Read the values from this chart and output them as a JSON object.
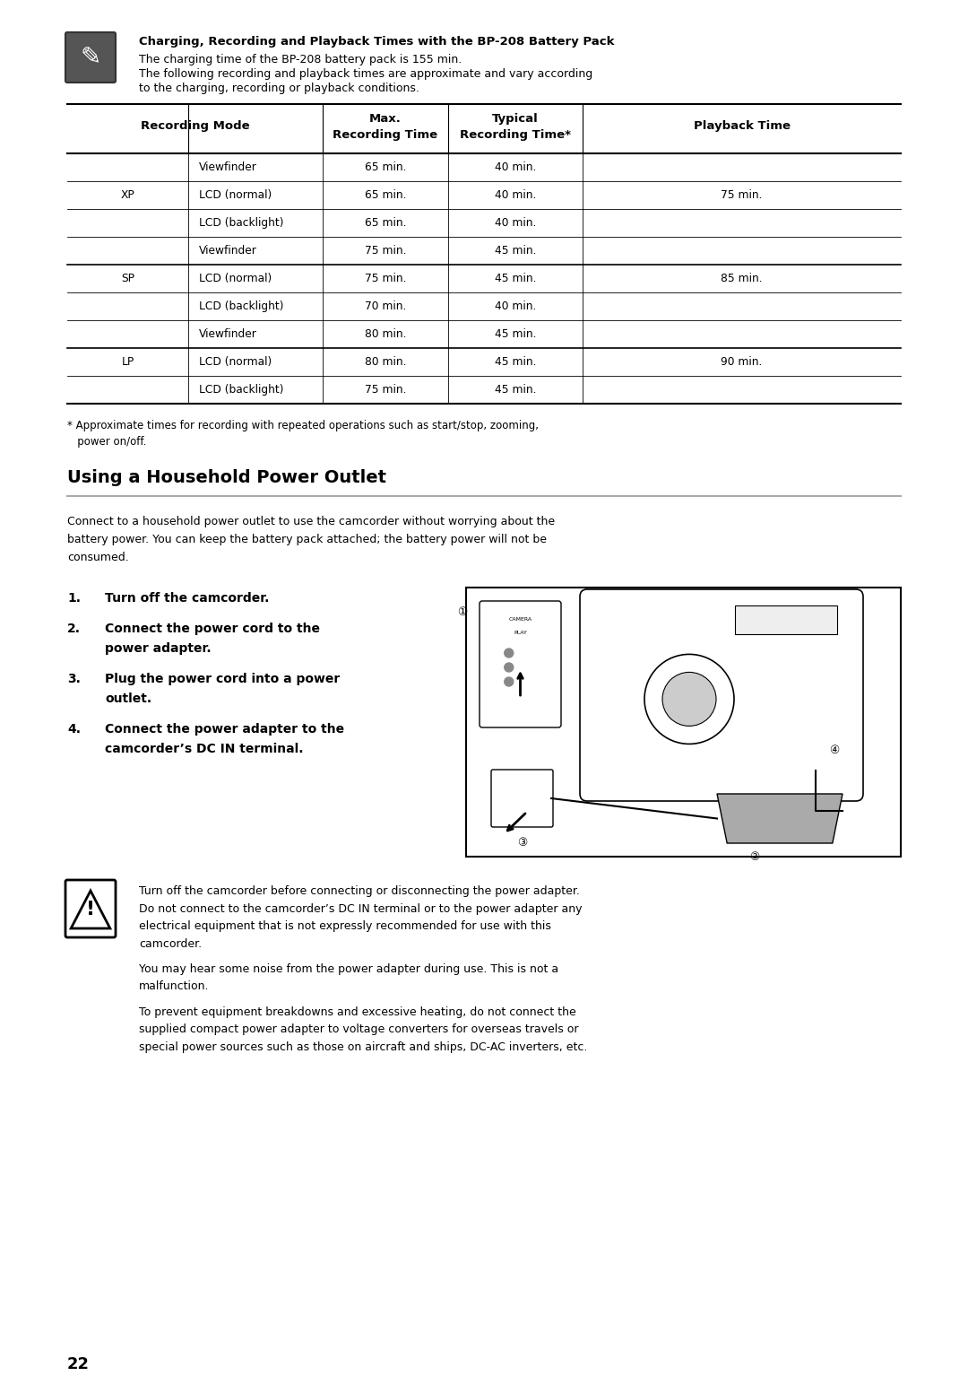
{
  "bg_color": "#ffffff",
  "page_number": "22",
  "section1": {
    "bold_title": "Charging, Recording and Playback Times with the BP-208 Battery Pack",
    "line1": "The charging time of the BP-208 battery pack is 155 min.",
    "line2": "The following recording and playback times are approximate and vary according",
    "line3": "to the charging, recording or playback conditions."
  },
  "table": {
    "rows": [
      {
        "mode_group": "XP",
        "sub": "Viewfinder",
        "max": "65 min.",
        "typ": "40 min.",
        "play": ""
      },
      {
        "mode_group": "XP",
        "sub": "LCD (normal)",
        "max": "65 min.",
        "typ": "40 min.",
        "play": "75 min."
      },
      {
        "mode_group": "XP",
        "sub": "LCD (backlight)",
        "max": "65 min.",
        "typ": "40 min.",
        "play": ""
      },
      {
        "mode_group": "SP",
        "sub": "Viewfinder",
        "max": "75 min.",
        "typ": "45 min.",
        "play": ""
      },
      {
        "mode_group": "SP",
        "sub": "LCD (normal)",
        "max": "75 min.",
        "typ": "45 min.",
        "play": "85 min."
      },
      {
        "mode_group": "SP",
        "sub": "LCD (backlight)",
        "max": "70 min.",
        "typ": "40 min.",
        "play": ""
      },
      {
        "mode_group": "LP",
        "sub": "Viewfinder",
        "max": "80 min.",
        "typ": "45 min.",
        "play": ""
      },
      {
        "mode_group": "LP",
        "sub": "LCD (normal)",
        "max": "80 min.",
        "typ": "45 min.",
        "play": "90 min."
      },
      {
        "mode_group": "LP",
        "sub": "LCD (backlight)",
        "max": "75 min.",
        "typ": "45 min.",
        "play": ""
      }
    ],
    "group_label_rows": {
      "XP": 1,
      "SP": 4,
      "LP": 7
    },
    "footnote_line1": "* Approximate times for recording with repeated operations such as start/stop, zooming,",
    "footnote_line2": "   power on/off."
  },
  "section2": {
    "title": "Using a Household Power Outlet",
    "intro_lines": [
      "Connect to a household power outlet to use the camcorder without worrying about the",
      "battery power. You can keep the battery pack attached; the battery power will not be",
      "consumed."
    ],
    "steps": [
      {
        "num": "1.",
        "line1": "Turn off the camcorder.",
        "line2": ""
      },
      {
        "num": "2.",
        "line1": "Connect the power cord to the",
        "line2": "power adapter."
      },
      {
        "num": "3.",
        "line1": "Plug the power cord into a power",
        "line2": "outlet."
      },
      {
        "num": "4.",
        "line1": "Connect the power adapter to the",
        "line2": "camcorder’s DC IN terminal."
      }
    ]
  },
  "warning_texts": [
    "Turn off the camcorder before connecting or disconnecting the power adapter.",
    "Do not connect to the camcorder’s DC IN terminal or to the power adapter any",
    "electrical equipment that is not expressly recommended for use with this",
    "camcorder.",
    "",
    "You may hear some noise from the power adapter during use. This is not a",
    "malfunction.",
    "",
    "To prevent equipment breakdowns and excessive heating, do not connect the",
    "supplied compact power adapter to voltage converters for overseas travels or",
    "special power sources such as those on aircraft and ships, DC-AC inverters, etc."
  ]
}
